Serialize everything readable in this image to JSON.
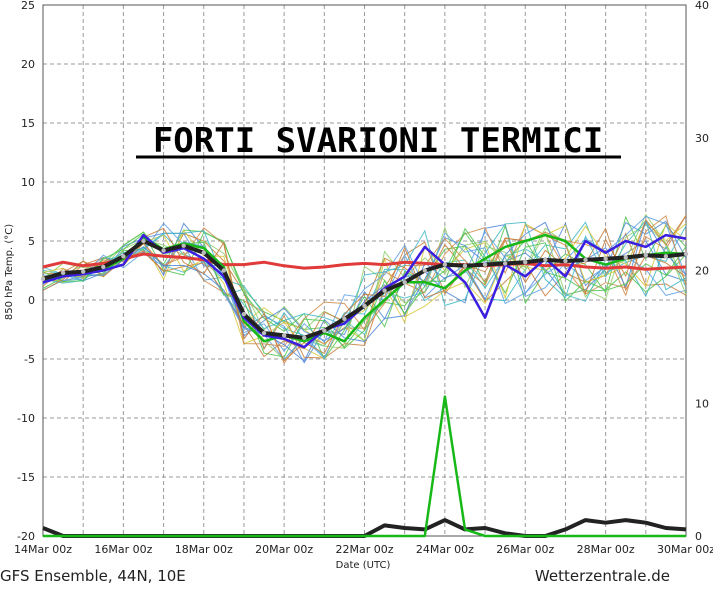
{
  "headline": "FORTI SVARIONI TERMICI",
  "footer_left": "GFS Ensemble, 44N, 10E",
  "footer_right": "Wetterzentrale.de",
  "chart_data": {
    "type": "line",
    "title": "",
    "xlabel": "Date (UTC)",
    "ylabel": "850 hPa Temp. (°C)",
    "ylim": [
      -20,
      25
    ],
    "y2lim": [
      0,
      40
    ],
    "yticks": [
      -20,
      -15,
      -10,
      -5,
      0,
      5,
      10,
      15,
      20,
      25
    ],
    "y2ticks": [
      0,
      10,
      20,
      30,
      40
    ],
    "x_tick_labels": [
      "14Mar 00z",
      "16Mar 00z",
      "18Mar 00z",
      "20Mar 00z",
      "22Mar 00z",
      "24Mar 00z",
      "26Mar 00z",
      "28Mar 00z",
      "30Mar 00z"
    ],
    "x_range_days": [
      0,
      16
    ],
    "grid": true,
    "colors": {
      "mean": "#222222",
      "climatology": "#e03a3a",
      "operational": "#3a1fe0",
      "control": "#18b818"
    },
    "series": [
      {
        "role": "mean",
        "x": [
          0,
          0.5,
          1,
          1.5,
          2,
          2.5,
          3,
          3.5,
          4,
          4.5,
          5,
          5.5,
          6,
          6.5,
          7,
          7.5,
          8,
          8.5,
          9,
          9.5,
          10,
          10.5,
          11,
          11.5,
          12,
          12.5,
          13,
          13.5,
          14,
          14.5,
          15,
          15.5,
          16
        ],
        "values": [
          1.8,
          2.3,
          2.4,
          2.8,
          3.7,
          5.0,
          4.2,
          4.6,
          4.0,
          2.5,
          -1.2,
          -2.8,
          -3.0,
          -3.2,
          -2.6,
          -1.6,
          -0.5,
          0.8,
          1.5,
          2.5,
          3.0,
          2.9,
          3.0,
          3.1,
          3.2,
          3.4,
          3.3,
          3.4,
          3.5,
          3.6,
          3.8,
          3.7,
          3.9
        ]
      },
      {
        "role": "climatology",
        "x": [
          0,
          0.5,
          1,
          1.5,
          2,
          2.5,
          3,
          3.5,
          4,
          4.5,
          5,
          5.5,
          6,
          6.5,
          7,
          7.5,
          8,
          8.5,
          9,
          9.5,
          10,
          10.5,
          11,
          11.5,
          12,
          12.5,
          13,
          13.5,
          14,
          14.5,
          15,
          15.5,
          16
        ],
        "values": [
          2.8,
          3.2,
          2.9,
          3.1,
          3.5,
          3.9,
          3.7,
          3.6,
          3.4,
          3.0,
          3.0,
          3.2,
          2.9,
          2.7,
          2.8,
          3.0,
          3.1,
          3.0,
          3.2,
          3.1,
          3.0,
          3.0,
          2.9,
          3.0,
          3.1,
          2.9,
          3.0,
          2.8,
          2.7,
          2.8,
          2.6,
          2.7,
          2.8
        ]
      },
      {
        "role": "operational",
        "x": [
          0,
          0.5,
          1,
          1.5,
          2,
          2.5,
          3,
          3.5,
          4,
          4.5,
          5,
          5.5,
          6,
          6.5,
          7,
          7.5,
          8,
          8.5,
          9,
          9.5,
          10,
          10.5,
          11,
          11.5,
          12,
          12.5,
          13,
          13.5,
          14,
          14.5,
          15,
          15.5,
          16
        ],
        "values": [
          1.5,
          2.0,
          2.2,
          2.5,
          3.0,
          5.5,
          4.0,
          4.4,
          3.5,
          2.0,
          -1.5,
          -3.0,
          -3.3,
          -4.0,
          -2.5,
          -2.0,
          -0.5,
          1.0,
          2.0,
          4.5,
          3.0,
          1.5,
          -1.5,
          3.0,
          2.0,
          3.5,
          2.0,
          5.0,
          4.0,
          5.0,
          4.5,
          5.5,
          5.2
        ]
      },
      {
        "role": "control",
        "x": [
          0,
          0.5,
          1,
          1.5,
          2,
          2.5,
          3,
          3.5,
          4,
          4.5,
          5,
          5.5,
          6,
          6.5,
          7,
          7.5,
          8,
          8.5,
          9,
          9.5,
          10,
          10.5,
          11,
          11.5,
          12,
          12.5,
          13,
          13.5,
          14,
          14.5,
          15,
          15.5,
          16
        ],
        "values": [
          1.6,
          2.1,
          2.3,
          2.6,
          3.5,
          5.3,
          4.3,
          4.8,
          4.4,
          2.8,
          -1.8,
          -3.5,
          -3.0,
          -3.5,
          -2.8,
          -3.5,
          -1.5,
          0.0,
          1.5,
          1.5,
          1.0,
          2.5,
          3.5,
          4.5,
          5.0,
          5.5,
          5.0,
          3.5,
          3.0,
          3.5,
          3.8,
          4.0,
          3.9
        ]
      }
    ],
    "precip_series": [
      {
        "role": "mean",
        "x": [
          0,
          0.5,
          1,
          1.5,
          2,
          2.5,
          3,
          3.5,
          4,
          4.5,
          5,
          5.5,
          6,
          6.5,
          7,
          7.5,
          8,
          8.5,
          9,
          9.5,
          10,
          10.5,
          11,
          11.5,
          12,
          12.5,
          13,
          13.5,
          14,
          14.5,
          15,
          15.5,
          16
        ],
        "values": [
          0.6,
          0,
          0,
          0,
          0,
          0,
          0,
          0,
          0,
          0,
          0,
          0,
          0,
          0,
          0,
          0,
          0,
          0.8,
          0.6,
          0.5,
          1.2,
          0.5,
          0.6,
          0.2,
          0,
          0,
          0.5,
          1.2,
          1.0,
          1.2,
          1.0,
          0.6,
          0.5
        ]
      },
      {
        "role": "control",
        "x": [
          0,
          0.5,
          1,
          1.5,
          2,
          2.5,
          3,
          3.5,
          4,
          4.5,
          5,
          5.5,
          6,
          6.5,
          7,
          7.5,
          8,
          8.5,
          9,
          9.5,
          10,
          10.5,
          11,
          11.5,
          12,
          12.5,
          13,
          13.5,
          14,
          14.5,
          15,
          15.5,
          16
        ],
        "values": [
          0,
          0,
          0,
          0,
          0,
          0,
          0,
          0,
          0,
          0,
          0,
          0,
          0,
          0,
          0,
          0,
          0,
          0,
          0,
          0,
          10.5,
          0.5,
          0,
          0,
          0,
          0,
          0,
          0,
          0,
          0,
          0,
          0,
          0
        ]
      }
    ]
  }
}
